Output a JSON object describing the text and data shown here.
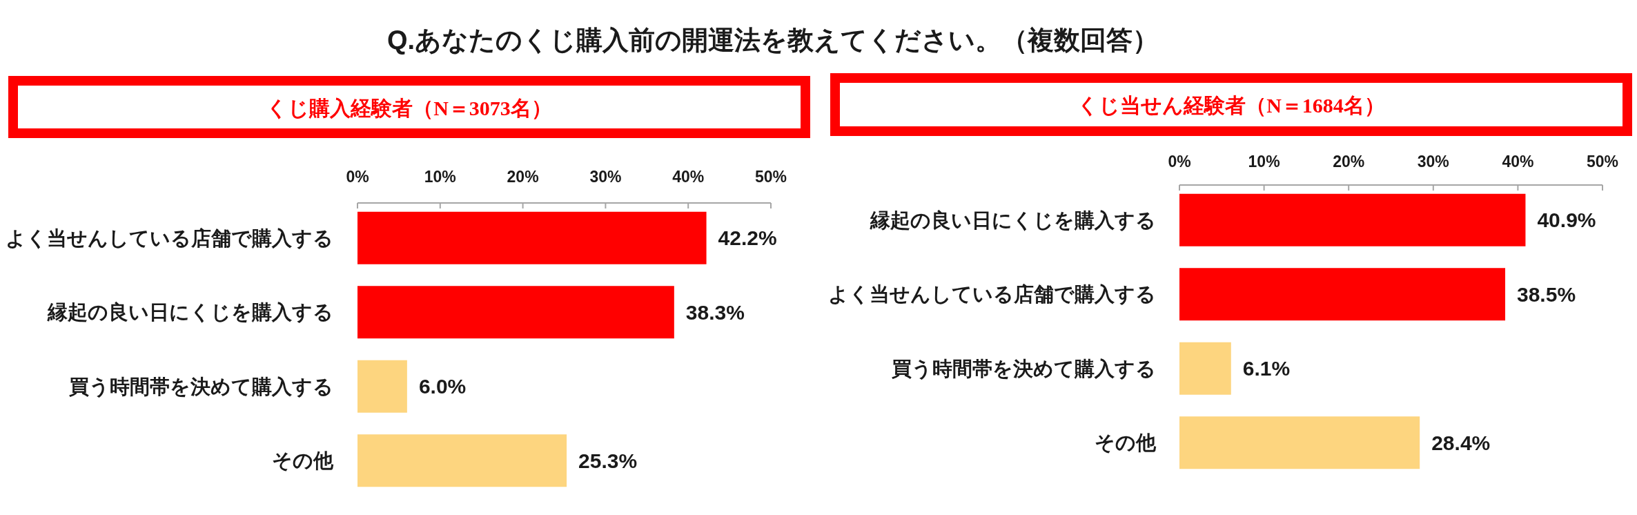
{
  "chart_data": [
    {
      "type": "bar",
      "orientation": "horizontal",
      "title": "Q.あなたのくじ購入前の開運法を教えてください。（複数回答）",
      "subtitle": "くじ購入経験者（N＝3073名）",
      "categories": [
        "よく当せんしている店舗で購入する",
        "縁起の良い日にくじを購入する",
        "買う時間帯を決めて購入する",
        "その他"
      ],
      "values": [
        42.2,
        38.3,
        6.0,
        25.3
      ],
      "colors": [
        "#ff0000",
        "#ff0000",
        "#fdd57f",
        "#fdd57f"
      ],
      "value_labels": [
        "42.2%",
        "38.3%",
        "6.0%",
        "25.3%"
      ],
      "xlim": [
        0,
        50
      ],
      "xticks": [
        {
          "value": 0,
          "label": "0%"
        },
        {
          "value": 10,
          "label": "10%"
        },
        {
          "value": 20,
          "label": "20%"
        },
        {
          "value": 30,
          "label": "30%"
        },
        {
          "value": 40,
          "label": "40%"
        },
        {
          "value": 50,
          "label": "50%"
        }
      ]
    },
    {
      "type": "bar",
      "orientation": "horizontal",
      "title": "くじ当せん経験者（N＝1684名）",
      "categories": [
        "縁起の良い日にくじを購入する",
        "よく当せんしている店舗で購入する",
        "買う時間帯を決めて購入する",
        "その他"
      ],
      "values": [
        40.9,
        38.5,
        6.1,
        28.4
      ],
      "colors": [
        "#ff0000",
        "#ff0000",
        "#fdd57f",
        "#fdd57f"
      ],
      "value_labels": [
        "40.9%",
        "38.5%",
        "6.1%",
        "28.4%"
      ],
      "xlim": [
        0,
        50
      ],
      "xticks": [
        {
          "value": 0,
          "label": "0%"
        },
        {
          "value": 10,
          "label": "10%"
        },
        {
          "value": 20,
          "label": "20%"
        },
        {
          "value": 30,
          "label": "30%"
        },
        {
          "value": 40,
          "label": "40%"
        },
        {
          "value": 50,
          "label": "50%"
        }
      ]
    }
  ]
}
